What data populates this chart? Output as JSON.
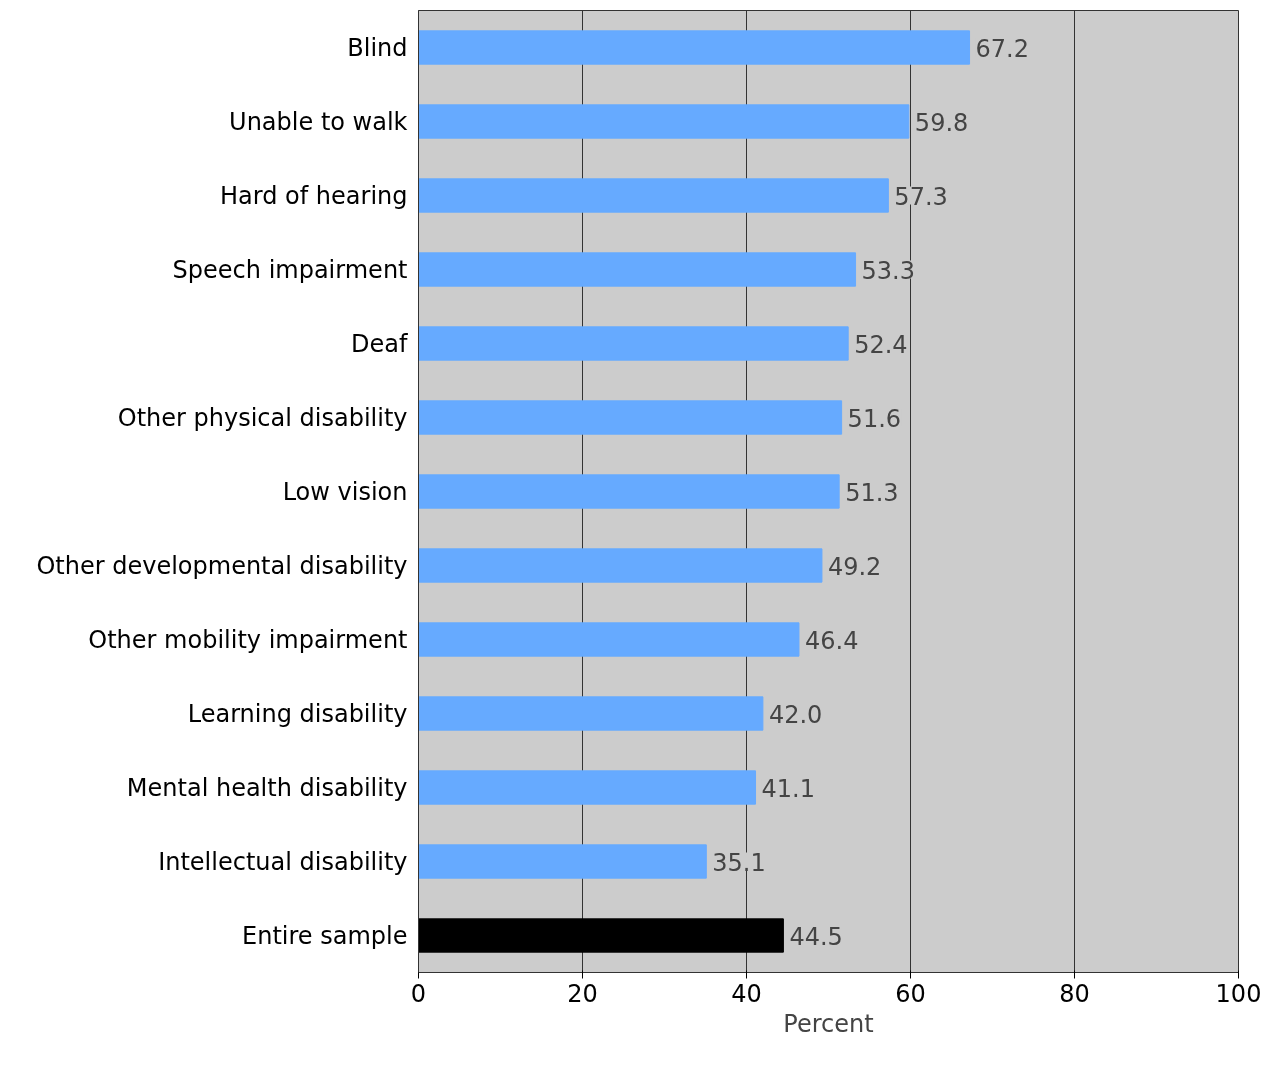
{
  "chart_data": {
    "type": "bar",
    "orientation": "horizontal",
    "xlabel": "Percent",
    "categories": [
      "Blind",
      "Unable to walk",
      "Hard of hearing",
      "Speech impairment",
      "Deaf",
      "Other physical disability",
      "Low vision",
      "Other developmental disability",
      "Other mobility impairment",
      "Learning disability",
      "Mental health disability",
      "Intellectual disability",
      "Entire sample"
    ],
    "values": [
      67.2,
      59.8,
      57.3,
      53.3,
      52.4,
      51.6,
      51.3,
      49.2,
      46.4,
      42.0,
      41.1,
      35.1,
      44.5
    ],
    "colors": [
      "#66aaff",
      "#66aaff",
      "#66aaff",
      "#66aaff",
      "#66aaff",
      "#66aaff",
      "#66aaff",
      "#66aaff",
      "#66aaff",
      "#66aaff",
      "#66aaff",
      "#66aaff",
      "#000000"
    ],
    "value_labels": [
      "67.2",
      "59.8",
      "57.3",
      "53.3",
      "52.4",
      "51.6",
      "51.3",
      "49.2",
      "46.4",
      "42.0",
      "41.1",
      "35.1",
      "44.5"
    ],
    "xlim": [
      0,
      100
    ],
    "xticks": [
      0,
      20,
      40,
      60,
      80,
      100
    ],
    "grid": "x"
  }
}
